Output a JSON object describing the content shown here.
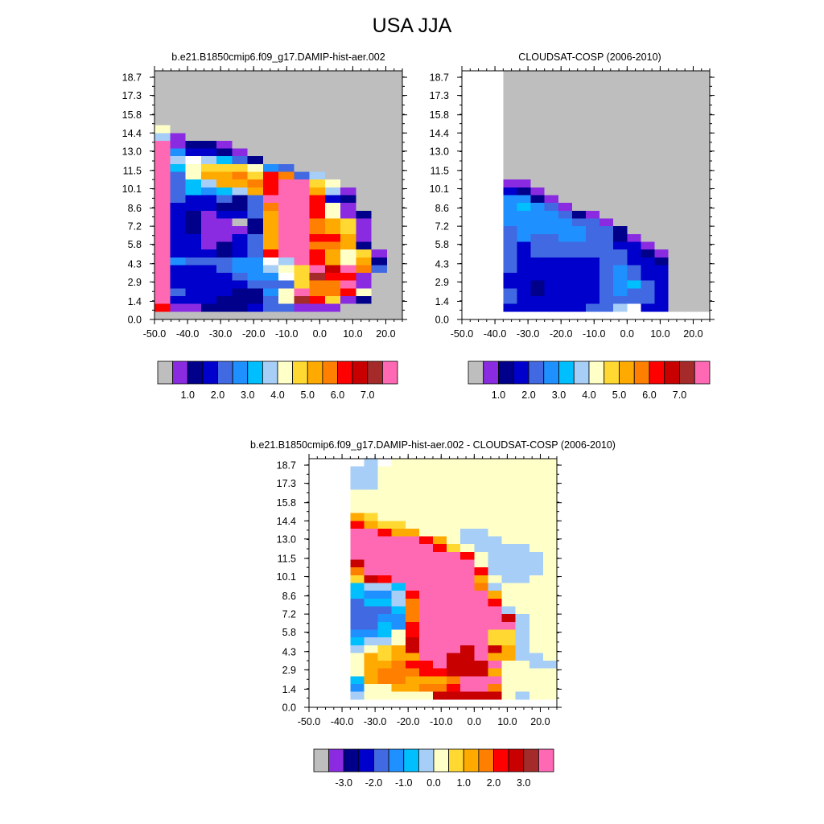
{
  "title": "USA JJA",
  "chart_data": [
    {
      "type": "heatmap",
      "panel": "top-left",
      "title": "b.e21.B1850cmip6.f09_g17.DAMIP-hist-aer.002",
      "xlabel": "",
      "ylabel": "",
      "x_ticks": [
        "-50.0",
        "-40.0",
        "-30.0",
        "-20.0",
        "-10.0",
        "0.0",
        "10.0",
        "20.0"
      ],
      "y_ticks": [
        "0.0",
        "1.4",
        "2.9",
        "4.3",
        "5.8",
        "7.2",
        "8.6",
        "10.1",
        "11.5",
        "13.0",
        "14.4",
        "15.8",
        "17.3",
        "18.7"
      ],
      "colorbar_labels": [
        "1.0",
        "2.0",
        "3.0",
        "4.0",
        "5.0",
        "6.0",
        "7.0"
      ],
      "rows": [
        "AAAAAAAAAAAAAAAA",
        "AAAAAAAAAAAAAAAA",
        "AAAAAAAAAAAAAAAA",
        "AAAAAAAAAAAAAAAA",
        "AAAAAAAAAAAAAAAA",
        "AAAAAAAAAAAAAAAA",
        "AAAAAAAAAAAAAAAA",
        "JAAAAAAAAAAAAAAA",
        "HBAAAAAAAAAAAAAA",
        "OBCCBAAAAAAAAAAA",
        "OFDDCBAAAAAAAAAA",
        "OHIHGECAAAAAAAAA",
        "OGJKKKJFEAAAAAAA",
        "OEJLLMKNMEHAAAAA",
        "OEGHLLMNOOKJAAAA",
        "OEGFGHLNOOLHBAAA",
        "OEDDECEOOONDCAAA",
        "ODDDCCEMOONJBAAA",
        "ODCBDDELOONJBCAA",
        "ODCBBACLOOMLKBAA",
        "ODCBBBCLOOMLKBAA",
        "ODDBBDELOONNLBAA",
        "ODDBCDELOOMMLCAA",
        "ODDDCDENOONLJKBA",
        "OFEEEFFIHONLJLCA",
        "ODDDEFFHJKOPOMEA",
        "ODDDDEFFIKQNNBAA",
        "ODDDDDEEEKMMOBAA",
        "OEDDDCCFJOMMNJAA",
        "ODDDCCCEJQNKBCAA",
        "NBBCCCDEEBBBAAAA",
        "AAAAAAAAAAAAAAAA"
      ]
    },
    {
      "type": "heatmap",
      "panel": "top-right",
      "title": "CLOUDSAT-COSP (2006-2010)",
      "xlabel": "",
      "ylabel": "",
      "x_ticks": [
        "-50.0",
        "-40.0",
        "-30.0",
        "-20.0",
        "-10.0",
        "0.0",
        "10.0",
        "20.0"
      ],
      "y_ticks": [
        "0.0",
        "1.4",
        "2.9",
        "4.3",
        "5.8",
        "7.2",
        "8.6",
        "10.1",
        "11.5",
        "13.0",
        "14.4",
        "15.8",
        "17.3",
        "18.7"
      ],
      "colorbar_labels": [
        "1.0",
        "2.0",
        "3.0",
        "4.0",
        "5.0",
        "6.0",
        "7.0"
      ],
      "rows": [
        "WWWAAAAAAAAAAAAAAA",
        "WWWAAAAAAAAAAAAAAA",
        "WWWAAAAAAAAAAAAAAA",
        "WWWAAAAAAAAAAAAAAA",
        "WWWAAAAAAAAAAAAAAA",
        "WWWAAAAAAAAAAAAAAA",
        "WWWAAAAAAAAAAAAAAA",
        "WWWAAAAAAAAAAAAAAA",
        "WWWAAAAAAAAAAAAAAA",
        "WWWAAAAAAAAAAAAAAA",
        "WWWAAAAAAAAAAAAAAA",
        "WWWAAAAAAAAAAAAAAA",
        "WWWAAAAAAAAAAAAAAA",
        "WWWAAAAAAAAAAAAAAA",
        "WWWBBAAAAAAAAAAAAA",
        "WWWDCBAAAAAAAAAAAA",
        "WWWFFCBAAAAAAAAAAA",
        "WWWFGFEBAAAAAAAAAA",
        "WWWFFFFECBAAAAAAAA",
        "WWWFFFFFEEBAAAAAAA",
        "WWWEFFFFFEECAAAAAA",
        "WWWEFEEFFEECBAAAAA",
        "WWWEDEEEEEEDDBAAAA",
        "WWWEDEEEEEEEDCBAAA",
        "WWWEDDDDDDEEDDCAAA",
        "WWWEDDDDDDEFEDDAAA",
        "WWWDDDDDDDEFEDDAAA",
        "WWWDDCDDDDEFGEDAAA",
        "WWWEDCDDDDEFEEDAAA",
        "WWWEDDDDDDEEEEDAAA",
        "WWWDDDDDDEEHIDDAAA",
        "WWWWWWWWWWWWWWWWWW"
      ]
    },
    {
      "type": "heatmap",
      "panel": "bottom-center",
      "title": "b.e21.B1850cmip6.f09_g17.DAMIP-hist-aer.002 - CLOUDSAT-COSP (2006-2010)",
      "xlabel": "",
      "ylabel": "",
      "x_ticks": [
        "-50.0",
        "-40.0",
        "-30.0",
        "-20.0",
        "-10.0",
        "0.0",
        "10.0",
        "20.0"
      ],
      "y_ticks": [
        "0.0",
        "1.4",
        "2.9",
        "4.3",
        "5.8",
        "7.2",
        "8.6",
        "10.1",
        "11.5",
        "13.0",
        "14.4",
        "15.8",
        "17.3",
        "18.7"
      ],
      "colorbar_labels": [
        "-3.0",
        "-2.0",
        "-1.0",
        "0.0",
        "1.0",
        "2.0",
        "3.0"
      ],
      "rows": [
        "WWWWHWJJJJJJJJJJJJ",
        "WWWHHJJJJJJJJJJJJJ",
        "WWWHHJJJJJJJJJJJJJ",
        "WWWHHJJJJJJJJJJJJJ",
        "WWWJJJJJJJJJJJJJJJ",
        "WWWJJJJJJJJJJJJJJJ",
        "WWWJJJJJJJJJJJJJJJ",
        "WWWLKJJJJJJJJJJJJJ",
        "WWWNLKKJJJJJJJJJJJ",
        "WWWOONLLJJJHHJJJJJ",
        "WWWOOOOONLJHHHJJJJ",
        "WWWOOOOOONKJHHHHJJ",
        "WWWOOOOOOOONJHHHHJ",
        "WWWPOOOOOOOOJHHHHJ",
        "WWWMOOOOOOOONHHHHJ",
        "WWWKPNOOOOOOLJHHJJ",
        "WWWGHHGOOOOOMHJJJJ",
        "WWWGFFHNOOOOOLJJJJ",
        "WWWEGGHMOOOOONJJJJ",
        "WWWEEEGMOOOOOOHJJJ",
        "WWWEEFFMOOOOOOPHJJ",
        "WWWEEGFNOOOOOOOHJJ",
        "WWWFFGJNOOOOOKKHJJ",
        "WWWGHHJPOOOOOKKHJJ",
        "WWWHJKLPOOOPOPLHJJ",
        "WWWJLKLLOOPPOLLHHJ",
        "WWWJLLMNNOPPPOJJHH",
        "WWWJLMMMNNPPPLJJJJ",
        "WWWGLMMLLLMOOOJJJJ",
        "WWWFJJLLMMNOOMJJJJ",
        "WWWHJJJJJPPPPPJHJJ",
        "WWWWWWWWWWWWWWWWWW"
      ]
    }
  ],
  "colors": {
    "A": "#bebebe",
    "B": "#8a2be2",
    "C": "#00008b",
    "D": "#0000cd",
    "E": "#4169e1",
    "F": "#1e90ff",
    "G": "#00bfff",
    "H": "#a6cef7",
    "J": "#ffffc8",
    "K": "#ffd932",
    "L": "#ffaa00",
    "M": "#ff7f00",
    "N": "#ff0000",
    "O": "#ff69b4",
    "P": "#c80000",
    "Q": "#a52a2a",
    "W": "#ffffff"
  },
  "colorbar_sequence": [
    "A",
    "B",
    "C",
    "D",
    "E",
    "F",
    "G",
    "H",
    "J",
    "K",
    "L",
    "M",
    "N",
    "P",
    "Q",
    "O"
  ],
  "colorbar_sequence_diff": [
    "A",
    "B",
    "C",
    "D",
    "E",
    "F",
    "G",
    "H",
    "J",
    "K",
    "L",
    "M",
    "N",
    "P",
    "Q",
    "O"
  ]
}
